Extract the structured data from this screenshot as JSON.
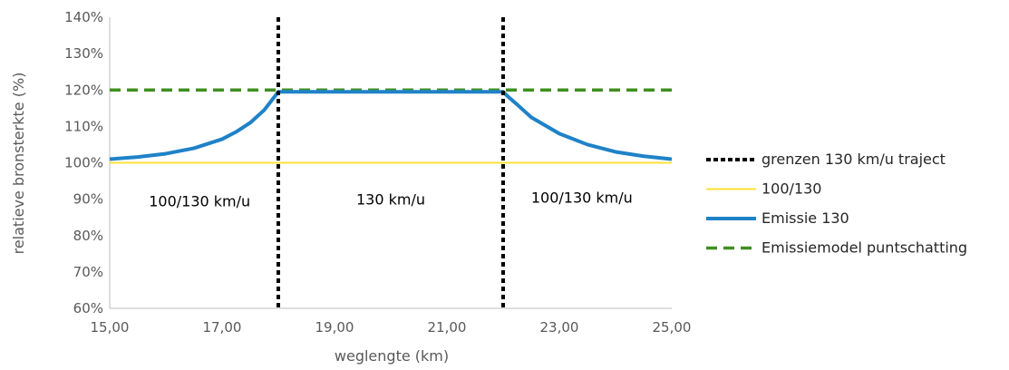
{
  "chart_data": {
    "type": "line",
    "xlabel": "weglengte (km)",
    "ylabel": "relatieve bronsterkte (%)",
    "xlim": [
      15,
      25
    ],
    "ylim": [
      60,
      140
    ],
    "x_ticks": [
      15,
      17,
      19,
      21,
      23,
      25
    ],
    "x_tick_labels": [
      "15,00",
      "17,00",
      "19,00",
      "21,00",
      "23,00",
      "25,00"
    ],
    "y_ticks": [
      60,
      70,
      80,
      90,
      100,
      110,
      120,
      130,
      140
    ],
    "y_tick_labels": [
      "60%",
      "70%",
      "80%",
      "90%",
      "100%",
      "110%",
      "120%",
      "130%",
      "140%"
    ],
    "grid": false,
    "legend_position": "right",
    "series": [
      {
        "name": "grenzen 130 km/u traject",
        "style": "dotted",
        "color": "#000000",
        "vertical_lines_x": [
          18,
          22
        ]
      },
      {
        "name": "100/130",
        "style": "solid",
        "color": "#FFE135",
        "x": [
          15,
          25
        ],
        "values": [
          100,
          100
        ]
      },
      {
        "name": "Emissie 130",
        "style": "solid",
        "color": "#1F82C8",
        "x": [
          15,
          15.5,
          16,
          16.5,
          17,
          17.25,
          17.5,
          17.75,
          17.9,
          18,
          22,
          22.1,
          22.25,
          22.5,
          23,
          23.5,
          24,
          24.5,
          25
        ],
        "values": [
          101,
          101.6,
          102.5,
          104,
          106.5,
          108.5,
          111,
          114.5,
          117.5,
          119.5,
          119.5,
          118,
          116,
          112.5,
          108,
          105,
          103,
          101.8,
          101
        ]
      },
      {
        "name": "Emissiemodel puntschatting",
        "style": "dashed",
        "color": "#3F8F1F",
        "x": [
          15,
          25
        ],
        "values": [
          120,
          120
        ]
      }
    ],
    "annotations": [
      {
        "text": "100/130 km/u",
        "x": 16.6,
        "y": 88
      },
      {
        "text": "130 km/u",
        "x": 20,
        "y": 88.5
      },
      {
        "text": "100/130 km/u",
        "x": 23.4,
        "y": 89
      }
    ]
  }
}
